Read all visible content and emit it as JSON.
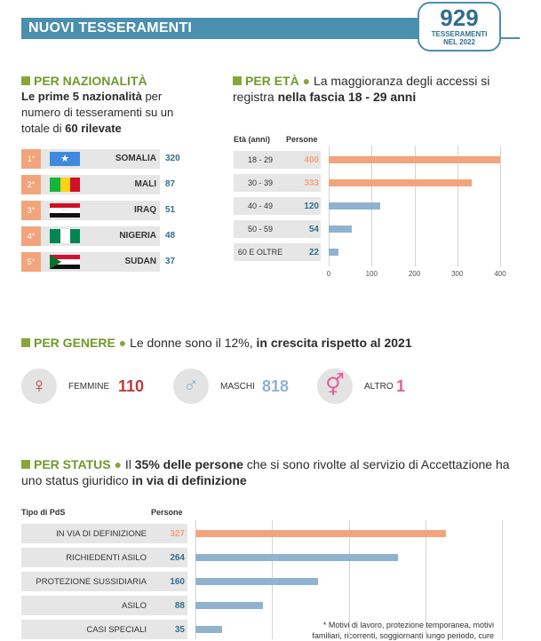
{
  "header": {
    "title": "NUOVI TESSERAMENTI",
    "total": "929",
    "total_label_1": "TESSERAMENTI",
    "total_label_2": "NEL 2022"
  },
  "nationality": {
    "heading": "PER NAZIONALITÀ",
    "desc_bold_1": "Le prime 5 nazionalità",
    "desc_1": " per numero di tesseramenti su un totale di ",
    "desc_bold_2": "60 rilevate",
    "rows": [
      {
        "rank": "1°",
        "name": "SOMALIA",
        "value": "320"
      },
      {
        "rank": "2°",
        "name": "MALI",
        "value": "87"
      },
      {
        "rank": "3°",
        "name": "IRAQ",
        "value": "51"
      },
      {
        "rank": "4°",
        "name": "NIGERIA",
        "value": "48"
      },
      {
        "rank": "5°",
        "name": "SUDAN",
        "value": "37"
      }
    ]
  },
  "age": {
    "heading": "PER ETÀ",
    "desc_1": "La maggioranza degli accessi si registra ",
    "desc_bold": "nella fascia 18 - 29 anni",
    "col_cat": "Età (anni)",
    "col_val": "Persone"
  },
  "gender": {
    "heading": "PER GENERE",
    "desc_1": "Le donne sono il 12%, ",
    "desc_bold": "in crescita rispetto al 2021",
    "items": [
      {
        "label": "FEMMINE",
        "value": "110",
        "color": "#c0393d",
        "symbol": "♀"
      },
      {
        "label": "MASCHI",
        "value": "818",
        "color": "#8fb3cf",
        "symbol": "♂"
      },
      {
        "label": "ALTRO",
        "value": "1",
        "color": "#e0609a",
        "symbol": "⚥"
      }
    ]
  },
  "status": {
    "heading": "PER STATUS",
    "desc_1": "Il ",
    "desc_bold_1": "35% delle persone",
    "desc_2": " che si sono rivolte al servizio di Accettazione ha uno status giuridico ",
    "desc_bold_2": "in via di definizione",
    "col_cat": "Tipo di PdS",
    "col_val": "Persone",
    "footnote_1": "* Motivi di lavoro, protezione temporanea, motivi",
    "footnote_2": "familiari, ricorrenti, soggiornanti lungo periodo, cure"
  },
  "colors": {
    "accent": "#4a8fad",
    "highlight": "#f2a57c",
    "bar_default": "#8fb3cf",
    "green": "#6e9a2a"
  },
  "chart_data": [
    {
      "type": "bar",
      "orientation": "horizontal",
      "categories": [
        "18 - 29",
        "30 - 39",
        "40 - 49",
        "50 - 59",
        "60 E OLTRE"
      ],
      "values": [
        400,
        333,
        120,
        54,
        22
      ],
      "highlight": [
        true,
        true,
        false,
        false,
        false
      ],
      "xlim": [
        0,
        400
      ],
      "ticks": [
        0,
        100,
        200,
        300,
        400
      ],
      "grid": true
    },
    {
      "type": "bar",
      "orientation": "horizontal",
      "categories": [
        "IN VIA DI DEFINIZIONE",
        "RICHIEDENTI ASILO",
        "PROTEZIONE SUSSIDIARIA",
        "ASILO",
        "CASI SPECIALI"
      ],
      "values": [
        327,
        264,
        160,
        88,
        35
      ],
      "highlight": [
        true,
        false,
        false,
        false,
        false
      ],
      "xlim": [
        0,
        400
      ],
      "grid": true
    }
  ]
}
